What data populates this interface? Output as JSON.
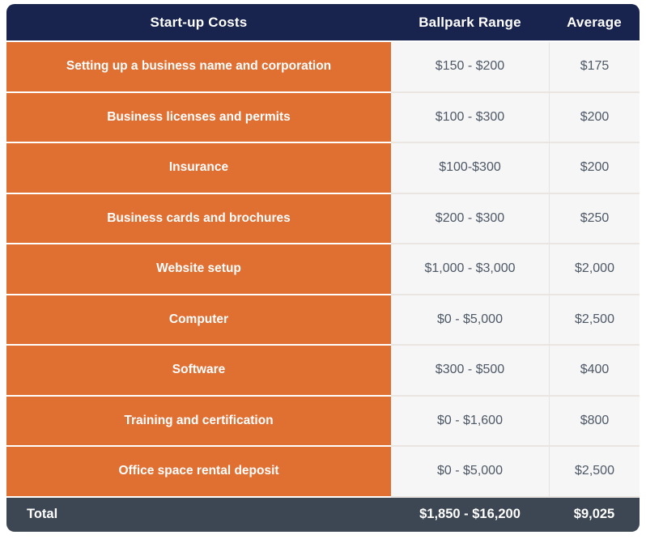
{
  "chart_data": {
    "type": "table",
    "title": "Start-up Costs",
    "columns": [
      "Start-up Costs",
      "Ballpark Range",
      "Average"
    ],
    "rows": [
      [
        "Setting up a business name and corporation",
        "$150 - $200",
        "$175"
      ],
      [
        "Business licenses and permits",
        "$100 - $300",
        "$200"
      ],
      [
        "Insurance",
        "$100-$300",
        "$200"
      ],
      [
        "Business cards and brochures",
        "$200 - $300",
        "$250"
      ],
      [
        "Website setup",
        "$1,000 - $3,000",
        "$2,000"
      ],
      [
        "Computer",
        "$0 - $5,000",
        "$2,500"
      ],
      [
        "Software",
        "$300 - $500",
        "$400"
      ],
      [
        "Training and certification",
        "$0 - $1,600",
        "$800"
      ],
      [
        "Office space rental deposit",
        "$0 - $5,000",
        "$2,500"
      ]
    ],
    "footer": [
      "Total",
      "$1,850 - $16,200",
      "$9,025"
    ]
  },
  "colors": {
    "header_bg": "#18244e",
    "row_label_bg": "#e06f32",
    "value_cell_bg": "#f5f6f5",
    "row_separator": "#ebe5e2",
    "footer_bg": "#3d4653",
    "header_text": "#ffffff",
    "row_label_text": "#ffffff",
    "value_text": "#4e5866",
    "footer_text": "#ffffff"
  }
}
